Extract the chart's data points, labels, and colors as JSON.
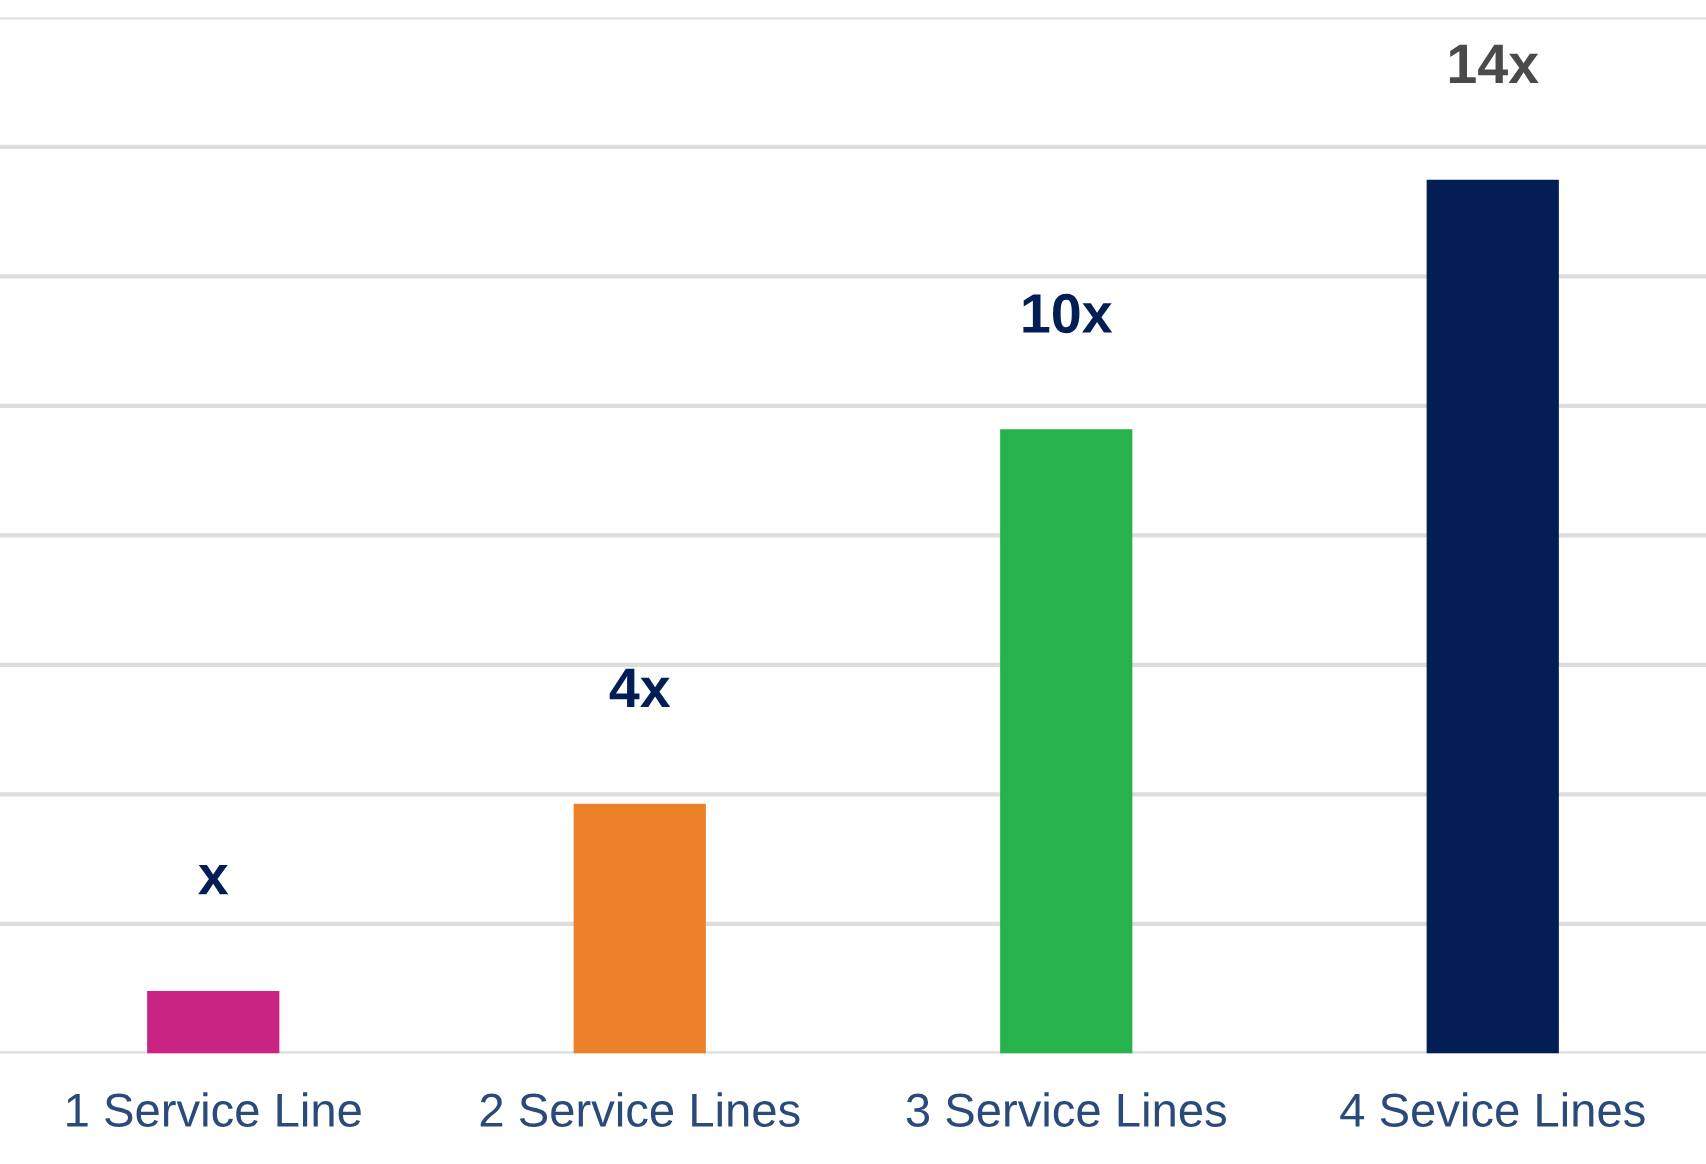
{
  "chart_data": {
    "type": "bar",
    "categories": [
      "1 Service Line",
      "2 Service Lines",
      "3 Service Lines",
      "4 Sevice Lines"
    ],
    "values": [
      1,
      4,
      10,
      14
    ],
    "colors": [
      "#c92383",
      "#ec8129",
      "#26b34b",
      "#021e55"
    ],
    "value_labels": [
      "x",
      "4x",
      "10x",
      "14x"
    ],
    "ylim": [
      0,
      16.6
    ],
    "yticks": [
      {
        "value": 0,
        "label": null
      },
      {
        "value": 2.075,
        "label": null
      },
      {
        "value": 4.15,
        "label": null
      },
      {
        "value": 6.225,
        "label": null
      },
      {
        "value": 8.3,
        "label": null
      },
      {
        "value": 10.375,
        "label": null
      },
      {
        "value": 12.45,
        "label": null
      },
      {
        "value": 14.525,
        "label": null
      },
      {
        "value": 16.6,
        "label": null
      }
    ],
    "grid": "y"
  }
}
